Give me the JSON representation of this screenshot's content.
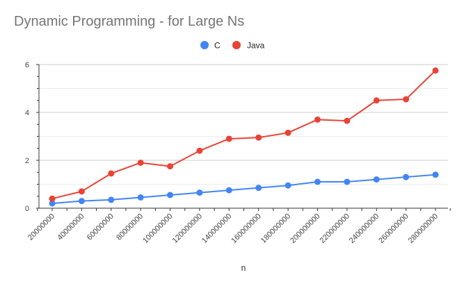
{
  "chart_data": {
    "type": "line",
    "title": "Dynamic Programming - for Large Ns",
    "xlabel": "n",
    "ylabel": "",
    "x": [
      20000000,
      40000000,
      60000000,
      80000000,
      100000000,
      120000000,
      140000000,
      160000000,
      180000000,
      200000000,
      220000000,
      240000000,
      260000000,
      280000000
    ],
    "x_tick_labels": [
      "20000000",
      "40000000",
      "60000000",
      "80000000",
      "100000000",
      "120000000",
      "140000000",
      "160000000",
      "180000000",
      "200000000",
      "220000000",
      "240000000",
      "260000000",
      "280000000"
    ],
    "ylim": [
      0,
      6
    ],
    "y_ticks": [
      0,
      2,
      4,
      6
    ],
    "y_tick_labels": [
      "0",
      "2",
      "4",
      "6"
    ],
    "grid": true,
    "legend_position": "top",
    "series": [
      {
        "name": "C",
        "color": "#4285f4",
        "values": [
          0.2,
          0.3,
          0.35,
          0.45,
          0.55,
          0.65,
          0.75,
          0.85,
          0.95,
          1.1,
          1.1,
          1.2,
          1.3,
          1.4
        ]
      },
      {
        "name": "Java",
        "color": "#ea4335",
        "values": [
          0.4,
          0.7,
          1.45,
          1.9,
          1.75,
          2.4,
          2.9,
          2.95,
          3.15,
          3.7,
          3.65,
          4.5,
          4.55,
          5.75
        ]
      }
    ]
  }
}
